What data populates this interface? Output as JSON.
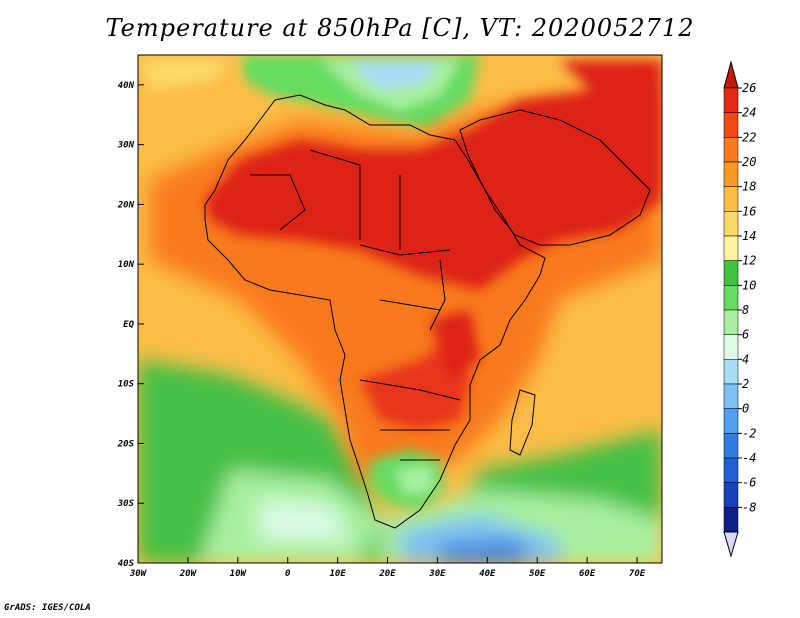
{
  "title": "Temperature at 850hPa [C], VT: 2020052712",
  "footer": "GrADS: IGES/COLA",
  "map": {
    "lon_range": [
      -30,
      75
    ],
    "lat_range": [
      -40,
      45
    ],
    "lon_ticks": [
      {
        "value": -30,
        "label": "30W"
      },
      {
        "value": -20,
        "label": "20W"
      },
      {
        "value": -10,
        "label": "10W"
      },
      {
        "value": 0,
        "label": "0"
      },
      {
        "value": 10,
        "label": "10E"
      },
      {
        "value": 20,
        "label": "20E"
      },
      {
        "value": 30,
        "label": "30E"
      },
      {
        "value": 40,
        "label": "40E"
      },
      {
        "value": 50,
        "label": "50E"
      },
      {
        "value": 60,
        "label": "60E"
      },
      {
        "value": 70,
        "label": "70E"
      }
    ],
    "lat_ticks": [
      {
        "value": 40,
        "label": "40N"
      },
      {
        "value": 30,
        "label": "30N"
      },
      {
        "value": 20,
        "label": "20N"
      },
      {
        "value": 10,
        "label": "10N"
      },
      {
        "value": 0,
        "label": "EQ"
      },
      {
        "value": -10,
        "label": "10S"
      },
      {
        "value": -20,
        "label": "20S"
      },
      {
        "value": -30,
        "label": "30S"
      },
      {
        "value": -40,
        "label": "40S"
      }
    ]
  },
  "colorbar": {
    "labels": [
      "26",
      "24",
      "22",
      "20",
      "18",
      "16",
      "14",
      "12",
      "10",
      "8",
      "6",
      "4",
      "2",
      "0",
      "-2",
      "-4",
      "-6",
      "-8"
    ],
    "colors": [
      "#e32a12",
      "#ef4a16",
      "#f97a1c",
      "#fa9a26",
      "#fbbd46",
      "#fdd867",
      "#fef3a0",
      "#3ec43e",
      "#64dc60",
      "#a8f0a0",
      "#dcfbe4",
      "#a8dcf5",
      "#7ec0f2",
      "#4fa0ea",
      "#2f7fe3",
      "#1f5fd3",
      "#1840b8",
      "#0e1f8a"
    ],
    "top_arrow_color": "#c41a0a",
    "bottom_arrow_color": "#dcd8f5"
  },
  "colors": {
    "ocean_cool": "#58c858",
    "ocean_warm": "#fbb848",
    "land_hot": "#dd2412",
    "border": "#000000"
  }
}
